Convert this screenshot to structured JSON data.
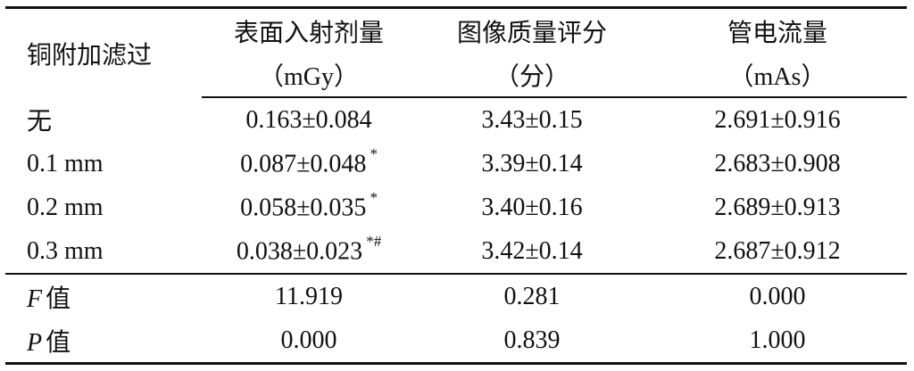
{
  "table": {
    "header": [
      {
        "label": "铜附加滤过"
      },
      {
        "label": "表面入射剂量",
        "unit": "（mGy）"
      },
      {
        "label": "图像质量评分",
        "unit": "（分）"
      },
      {
        "label": "管电流量",
        "unit": "（mAs）"
      }
    ],
    "rows": [
      [
        {
          "text": "无"
        },
        {
          "text": "0.163±0.084"
        },
        {
          "text": "3.43±0.15"
        },
        {
          "text": "2.691±0.916"
        }
      ],
      [
        {
          "text": "0.1 mm"
        },
        {
          "text": "0.087±0.048",
          "sup": "*"
        },
        {
          "text": "3.39±0.14"
        },
        {
          "text": "2.683±0.908"
        }
      ],
      [
        {
          "text": "0.2 mm"
        },
        {
          "text": "0.058±0.035",
          "sup": "*"
        },
        {
          "text": "3.40±0.16"
        },
        {
          "text": "2.689±0.913"
        }
      ],
      [
        {
          "text": "0.3 mm"
        },
        {
          "text": "0.038±0.023",
          "sup": "*#"
        },
        {
          "text": "3.42±0.14"
        },
        {
          "text": "2.687±0.912"
        }
      ]
    ],
    "stats": [
      [
        {
          "italic": "F",
          "text": "值"
        },
        {
          "text": "11.919"
        },
        {
          "text": "0.281"
        },
        {
          "text": "0.000"
        }
      ],
      [
        {
          "italic": "P",
          "text": "值"
        },
        {
          "text": "0.000"
        },
        {
          "text": "0.839"
        },
        {
          "text": "1.000"
        }
      ]
    ]
  }
}
